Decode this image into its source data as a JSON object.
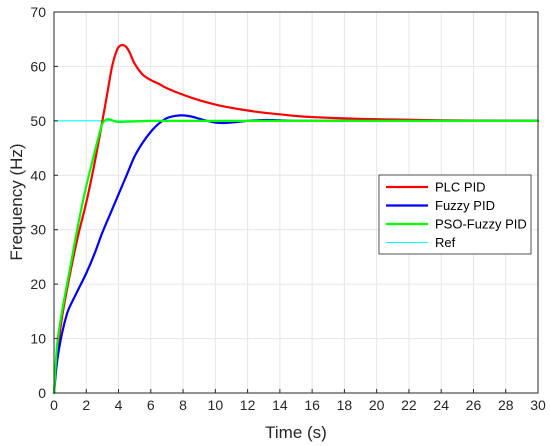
{
  "chart_data": {
    "type": "line",
    "xlabel": "Time (s)",
    "ylabel": "Frequency (Hz)",
    "xlim": [
      0,
      30
    ],
    "ylim": [
      0,
      70
    ],
    "xticks": [
      0,
      2,
      4,
      6,
      8,
      10,
      12,
      14,
      16,
      18,
      20,
      22,
      24,
      26,
      28,
      30
    ],
    "yticks": [
      0,
      10,
      20,
      30,
      40,
      50,
      60,
      70
    ],
    "grid": true,
    "legend_position": "center-right",
    "series": [
      {
        "name": "PLC PID",
        "color": "#ff0000",
        "x": [
          0,
          0.2,
          0.5,
          1,
          1.5,
          2,
          2.5,
          3,
          3.3,
          3.6,
          3.9,
          4.1,
          4.3,
          4.5,
          4.7,
          5,
          5.5,
          6,
          6.5,
          7,
          8,
          9,
          10,
          11,
          12,
          13,
          14,
          15,
          16,
          18,
          20,
          22,
          24,
          26,
          28,
          30
        ],
        "y": [
          0,
          7,
          14,
          22,
          29,
          35,
          42,
          50,
          55,
          60,
          63,
          63.8,
          63.9,
          63.5,
          62.5,
          60.5,
          58.5,
          57.5,
          56.8,
          56,
          54.8,
          53.8,
          53,
          52.4,
          51.9,
          51.5,
          51.2,
          50.9,
          50.7,
          50.45,
          50.3,
          50.2,
          50.1,
          50.05,
          50.03,
          50
        ]
      },
      {
        "name": "Fuzzy PID",
        "color": "#0000ff",
        "x": [
          0,
          0.2,
          0.5,
          0.8,
          1,
          1.5,
          2,
          2.5,
          3,
          3.5,
          4,
          4.5,
          5,
          5.5,
          6,
          6.5,
          7,
          7.5,
          8,
          8.5,
          9,
          9.5,
          10,
          10.5,
          11,
          12,
          13,
          14,
          15,
          16,
          18,
          20,
          22,
          24,
          26,
          28,
          30
        ],
        "y": [
          0,
          6,
          11,
          14.5,
          16,
          19,
          22,
          25.5,
          29.5,
          33,
          36.5,
          40,
          43.5,
          46,
          48,
          49.5,
          50.5,
          50.9,
          51,
          50.8,
          50.4,
          50,
          49.7,
          49.6,
          49.7,
          50,
          50.15,
          50.1,
          50,
          50,
          50,
          50,
          50,
          50,
          50,
          50,
          50
        ]
      },
      {
        "name": "PSO-Fuzzy PID",
        "color": "#00ff00",
        "x": [
          0,
          0.2,
          0.5,
          1,
          1.5,
          2,
          2.5,
          2.8,
          3,
          3.2,
          3.4,
          3.6,
          3.8,
          4,
          4.5,
          5,
          6,
          7,
          8,
          10,
          12,
          14,
          16,
          18,
          20,
          22,
          24,
          26,
          28,
          30
        ],
        "y": [
          0,
          9,
          15,
          23,
          31,
          38,
          44,
          47.5,
          49.5,
          50.2,
          50.3,
          50.1,
          49.9,
          49.8,
          49.85,
          49.9,
          50,
          50,
          50,
          50,
          50,
          50,
          50,
          50,
          50,
          50,
          50,
          50,
          50,
          50
        ]
      },
      {
        "name": "Ref",
        "color": "#00ffff",
        "x": [
          0,
          30
        ],
        "y": [
          50,
          50
        ]
      }
    ]
  }
}
